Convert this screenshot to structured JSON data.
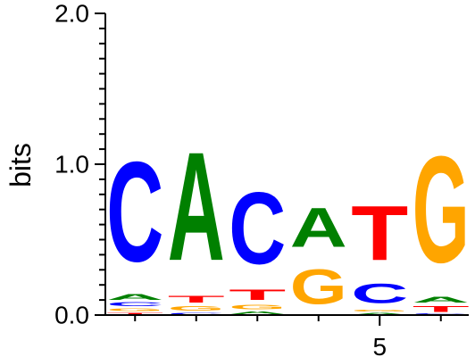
{
  "chart_data": {
    "type": "sequence-logo",
    "title": "",
    "xlabel": "",
    "ylabel": "bits",
    "ylim": [
      0,
      2
    ],
    "y_ticks": [
      {
        "value": 0,
        "label": "0.0"
      },
      {
        "value": 1,
        "label": "1.0"
      },
      {
        "value": 2,
        "label": "2.0"
      }
    ],
    "x_ticks": [
      {
        "position": 5,
        "label": "5"
      }
    ],
    "colors": {
      "A": "#008000",
      "C": "#0000FF",
      "G": "#FFA500",
      "T": "#FF0000"
    },
    "positions": [
      {
        "position": 1,
        "letters": [
          {
            "letter": "T",
            "height": 0.02
          },
          {
            "letter": "G",
            "height": 0.03
          },
          {
            "letter": "C",
            "height": 0.04
          },
          {
            "letter": "A",
            "height": 0.06
          },
          {
            "letter": "C",
            "height": 1.06
          }
        ]
      },
      {
        "position": 2,
        "letters": [
          {
            "letter": "C",
            "height": 0.02
          },
          {
            "letter": "G",
            "height": 0.05
          },
          {
            "letter": "T",
            "height": 0.07
          },
          {
            "letter": "A",
            "height": 1.15
          }
        ]
      },
      {
        "position": 3,
        "letters": [
          {
            "letter": "A",
            "height": 0.03
          },
          {
            "letter": "G",
            "height": 0.05
          },
          {
            "letter": "T",
            "height": 0.11
          },
          {
            "letter": "C",
            "height": 0.76
          }
        ]
      },
      {
        "position": 4,
        "letters": [
          {
            "letter": "G",
            "height": 0.37
          },
          {
            "letter": "A",
            "height": 0.42
          }
        ]
      },
      {
        "position": 5,
        "letters": [
          {
            "letter": "A",
            "height": 0.02
          },
          {
            "letter": "G",
            "height": 0.02
          },
          {
            "letter": "C",
            "height": 0.21
          },
          {
            "letter": "T",
            "height": 0.58
          }
        ]
      },
      {
        "position": 6,
        "letters": [
          {
            "letter": "C",
            "height": 0.01
          },
          {
            "letter": "T",
            "height": 0.06
          },
          {
            "letter": "A",
            "height": 0.06
          },
          {
            "letter": "G",
            "height": 1.13
          }
        ]
      }
    ]
  }
}
